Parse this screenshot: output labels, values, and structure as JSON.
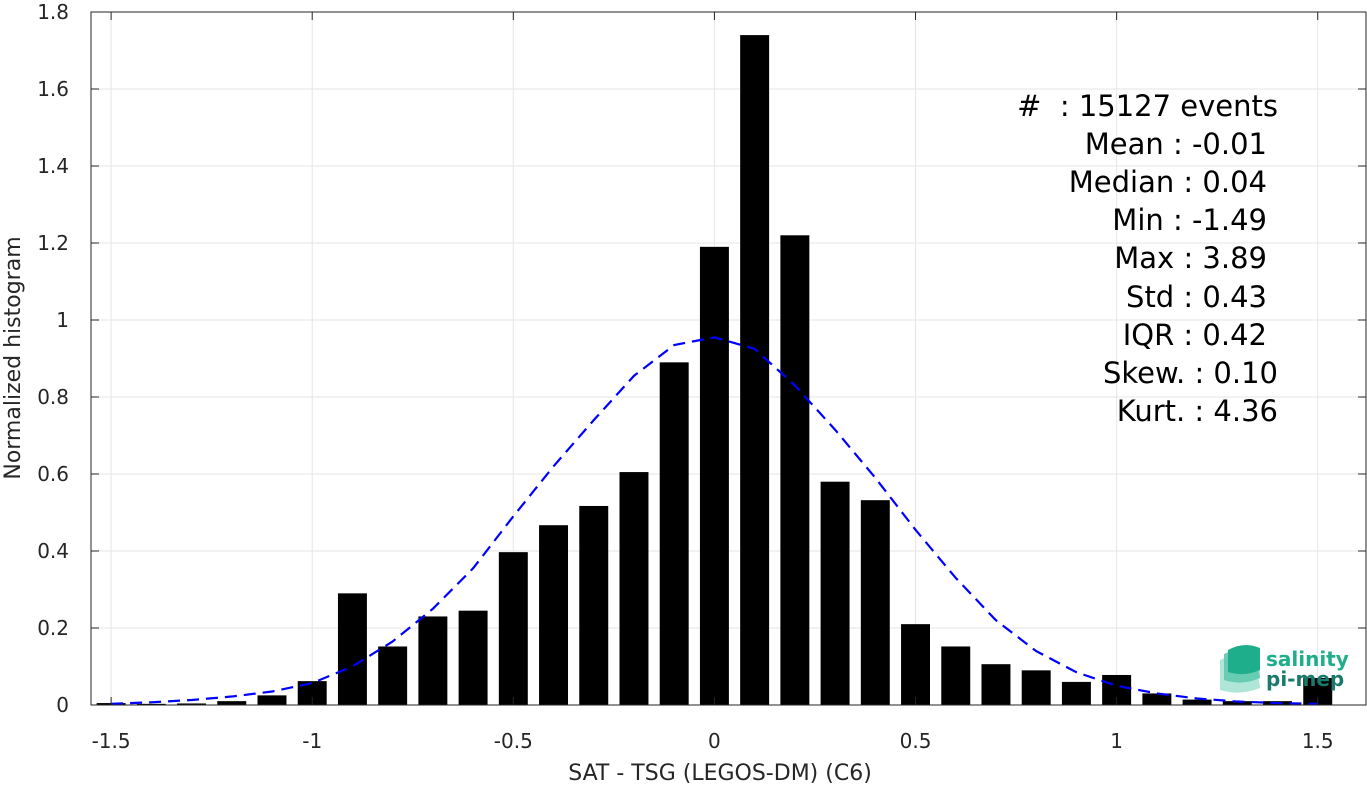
{
  "chart_data": {
    "type": "bar",
    "xlabel": "SAT - TSG (LEGOS-DM) (C6)",
    "ylabel": "Normalized histogram",
    "xlim": [
      -1.55,
      1.62
    ],
    "ylim": [
      0,
      1.8
    ],
    "xticks": [
      -1.5,
      -1,
      -0.5,
      0,
      0.5,
      1,
      1.5
    ],
    "xtick_labels": [
      "-1.5",
      "-1",
      "-0.5",
      "0",
      "0.5",
      "1",
      "1.5"
    ],
    "yticks": [
      0,
      0.2,
      0.4,
      0.6,
      0.8,
      1,
      1.2,
      1.4,
      1.6,
      1.8
    ],
    "ytick_labels": [
      "0",
      "0.2",
      "0.4",
      "0.6",
      "0.8",
      "1",
      "1.2",
      "1.4",
      "1.6",
      "1.8"
    ],
    "grid": true,
    "bin_width": 0.1,
    "bar_color": "#000000",
    "series": [
      {
        "type": "bar",
        "x": [
          -1.5,
          -1.4,
          -1.3,
          -1.2,
          -1.1,
          -1.0,
          -0.9,
          -0.8,
          -0.7,
          -0.6,
          -0.5,
          -0.4,
          -0.3,
          -0.2,
          -0.1,
          0.0,
          0.1,
          0.2,
          0.3,
          0.4,
          0.5,
          0.6,
          0.7,
          0.8,
          0.9,
          1.0,
          1.1,
          1.2,
          1.3,
          1.4,
          1.5
        ],
        "values": [
          0.005,
          0.003,
          0.004,
          0.01,
          0.025,
          0.062,
          0.29,
          0.152,
          0.23,
          0.245,
          0.397,
          0.467,
          0.517,
          0.605,
          0.89,
          1.19,
          1.74,
          1.22,
          0.58,
          0.532,
          0.21,
          0.152,
          0.106,
          0.09,
          0.06,
          0.078,
          0.03,
          0.014,
          0.01,
          0.01,
          0.07
        ]
      },
      {
        "type": "line",
        "style": "dashed",
        "color": "#0000ff",
        "x": [
          -1.5,
          -1.4,
          -1.3,
          -1.2,
          -1.1,
          -1.0,
          -0.9,
          -0.8,
          -0.7,
          -0.6,
          -0.5,
          -0.4,
          -0.3,
          -0.2,
          -0.1,
          0.0,
          0.1,
          0.2,
          0.3,
          0.4,
          0.5,
          0.6,
          0.7,
          0.8,
          0.9,
          1.0,
          1.1,
          1.2,
          1.3,
          1.4,
          1.5
        ],
        "values": [
          0.003,
          0.007,
          0.013,
          0.022,
          0.035,
          0.057,
          0.1,
          0.165,
          0.25,
          0.355,
          0.49,
          0.62,
          0.74,
          0.855,
          0.935,
          0.955,
          0.925,
          0.83,
          0.715,
          0.59,
          0.455,
          0.33,
          0.22,
          0.14,
          0.085,
          0.05,
          0.03,
          0.017,
          0.009,
          0.005,
          0.003
        ]
      }
    ],
    "annotations": [
      "#  : 15127 events",
      "Mean : -0.01",
      "Median : 0.04",
      "Min : -1.49",
      "Max : 3.89",
      "Std : 0.43",
      "IQR : 0.42",
      "Skew. : 0.10",
      "Kurt. : 4.36"
    ]
  },
  "logo": {
    "line1": "salinity",
    "line2": "pi-mep",
    "color_top": "#1fae8c",
    "color_bottom": "#1a7a6e"
  }
}
